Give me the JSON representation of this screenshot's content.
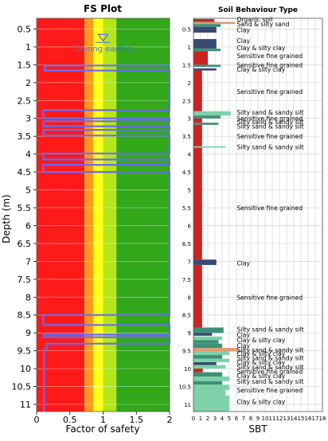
{
  "chart_data": [
    {
      "type": "line",
      "title": "FS Plot",
      "xlabel": "Factor of safety",
      "ylabel": "Depth (m)",
      "xlim": [
        0,
        2
      ],
      "ylim": [
        0.2,
        11.2
      ],
      "x_ticks": [
        "0",
        "0.5",
        "1",
        "1.5",
        "2"
      ],
      "y_ticks": [
        "0.5",
        "1",
        "1.5",
        "2",
        "2.5",
        "3",
        "3.5",
        "4",
        "4.5",
        "5",
        "5.5",
        "6",
        "6.5",
        "7",
        "7.5",
        "8",
        "8.5",
        "9",
        "9.5",
        "10",
        "10.5",
        "11"
      ],
      "grid": true,
      "bands": [
        {
          "from": 0,
          "to": 0.72,
          "color": "#ff1a1a"
        },
        {
          "from": 0.72,
          "to": 0.85,
          "color": "#ff9a1a"
        },
        {
          "from": 0.85,
          "to": 1.0,
          "color": "#ffff1a"
        },
        {
          "from": 1.0,
          "to": 1.2,
          "color": "#b4e61a"
        },
        {
          "from": 1.2,
          "to": 2.0,
          "color": "#32a81a"
        }
      ],
      "annotation": {
        "text": "During earthq.",
        "depth": 0.92,
        "x": 1.0
      },
      "series": [
        {
          "color": "#6a6af0",
          "points": [
            [
              2,
              1.52
            ],
            [
              0.12,
              1.52
            ],
            [
              0.12,
              1.66
            ],
            [
              2,
              1.66
            ],
            [
              2,
              2.77
            ],
            [
              0.1,
              2.77
            ],
            [
              0.1,
              3.0
            ],
            [
              2,
              3.0
            ],
            [
              2,
              3.08
            ],
            [
              0.1,
              3.08
            ],
            [
              0.1,
              3.22
            ],
            [
              2,
              3.22
            ],
            [
              2,
              3.32
            ],
            [
              0.1,
              3.32
            ],
            [
              0.1,
              3.48
            ],
            [
              2,
              3.48
            ],
            [
              2,
              3.98
            ],
            [
              0.1,
              3.98
            ],
            [
              0.1,
              4.15
            ],
            [
              2,
              4.15
            ],
            [
              2,
              4.3
            ],
            [
              0.1,
              4.3
            ],
            [
              0.1,
              4.5
            ],
            [
              2,
              4.5
            ],
            [
              2,
              8.5
            ],
            [
              0.1,
              8.5
            ],
            [
              0.1,
              8.78
            ],
            [
              2,
              8.78
            ],
            [
              2,
              9.05
            ],
            [
              0.1,
              9.05
            ],
            [
              0.1,
              9.12
            ],
            [
              2,
              9.12
            ],
            [
              2,
              9.3
            ],
            [
              0.15,
              9.3
            ],
            [
              0.15,
              9.45
            ],
            [
              0.11,
              9.45
            ],
            [
              0.11,
              11.2
            ]
          ]
        }
      ]
    },
    {
      "type": "bar",
      "title": "Soil Behaviour Type",
      "xlabel": "SBT",
      "xlim": [
        0,
        18
      ],
      "ylim": [
        0.2,
        11.2
      ],
      "x_ticks": [
        "0",
        "1",
        "2",
        "3",
        "4",
        "5",
        "6",
        "7",
        "8",
        "9",
        "10",
        "11",
        "12",
        "13",
        "14",
        "15",
        "16",
        "17",
        "18"
      ],
      "y_ticks": [
        "0.5",
        "1",
        "1.5",
        "2",
        "2.5",
        "3",
        "3.5",
        "4",
        "4.5",
        "5",
        "5.5",
        "6",
        "6.5",
        "7",
        "7.5",
        "8",
        "8.5",
        "9",
        "9.5",
        "10",
        "10.5",
        "11"
      ],
      "grid": true,
      "colors": {
        "1": "#b03030",
        "2": "#cc2222",
        "3": "#3a4a72",
        "4": "#3f8f78",
        "5": "#7ed1a8",
        "6": "#d9a070",
        "7": "#c8a060",
        "8": "#bbbbbb"
      },
      "layers": [
        {
          "top": 0.22,
          "bottom": 0.3,
          "sbt": 2.9,
          "color": "#b03030"
        },
        {
          "top": 0.3,
          "bottom": 0.36,
          "sbt": 5.8,
          "color": "#d9a070"
        },
        {
          "top": 0.36,
          "bottom": 0.44,
          "sbt": 3.8,
          "color": "#3f8f78"
        },
        {
          "top": 0.44,
          "bottom": 0.6,
          "sbt": 3.2,
          "color": "#3a4a72"
        },
        {
          "top": 0.78,
          "bottom": 1.05,
          "sbt": 3.2,
          "color": "#3a4a72"
        },
        {
          "top": 1.05,
          "bottom": 1.12,
          "sbt": 3.8,
          "color": "#3f8f78"
        },
        {
          "top": 1.12,
          "bottom": 1.5,
          "sbt": 2.0,
          "color": "#cc2222"
        },
        {
          "top": 1.5,
          "bottom": 1.56,
          "sbt": 3.8,
          "color": "#3f8f78"
        },
        {
          "top": 1.6,
          "bottom": 1.66,
          "sbt": 3.2,
          "color": "#3a4a72"
        },
        {
          "top": 1.66,
          "bottom": 2.8,
          "sbt": 1.2,
          "color": "#cc2222"
        },
        {
          "top": 2.8,
          "bottom": 2.92,
          "sbt": 5.2,
          "color": "#7ed1a8"
        },
        {
          "top": 2.92,
          "bottom": 3.0,
          "sbt": 3.8,
          "color": "#3f8f78"
        },
        {
          "top": 3.0,
          "bottom": 3.12,
          "sbt": 1.2,
          "color": "#cc2222"
        },
        {
          "top": 3.12,
          "bottom": 3.18,
          "sbt": 3.5,
          "color": "#3f8f78"
        },
        {
          "top": 3.18,
          "bottom": 3.78,
          "sbt": 1.2,
          "color": "#cc2222"
        },
        {
          "top": 3.78,
          "bottom": 3.82,
          "sbt": 4.5,
          "color": "#7ed1a8"
        },
        {
          "top": 3.82,
          "bottom": 6.95,
          "sbt": 1.2,
          "color": "#cc2222"
        },
        {
          "top": 6.95,
          "bottom": 7.1,
          "sbt": 3.2,
          "color": "#3a4a72"
        },
        {
          "top": 7.1,
          "bottom": 8.85,
          "sbt": 1.2,
          "color": "#cc2222"
        },
        {
          "top": 8.85,
          "bottom": 9.0,
          "sbt": 4.2,
          "color": "#3f8f78"
        },
        {
          "top": 9.0,
          "bottom": 9.08,
          "sbt": 2.6,
          "color": "#3a4a72"
        },
        {
          "top": 9.1,
          "bottom": 9.2,
          "sbt": 4.0,
          "color": "#7ed1a8"
        },
        {
          "top": 9.2,
          "bottom": 9.3,
          "sbt": 3.5,
          "color": "#3f8f78"
        },
        {
          "top": 9.3,
          "bottom": 9.42,
          "sbt": 4.0,
          "color": "#3f8f78"
        },
        {
          "top": 9.42,
          "bottom": 9.52,
          "sbt": 6.2,
          "color": "#d9a070"
        },
        {
          "top": 9.52,
          "bottom": 9.62,
          "sbt": 5.0,
          "color": "#7ed1a8"
        },
        {
          "top": 9.62,
          "bottom": 9.72,
          "sbt": 4.0,
          "color": "#3f8f78"
        },
        {
          "top": 9.72,
          "bottom": 9.82,
          "sbt": 5.0,
          "color": "#7ed1a8"
        },
        {
          "top": 9.82,
          "bottom": 9.9,
          "sbt": 3.2,
          "color": "#3a4a72"
        },
        {
          "top": 9.9,
          "bottom": 10.0,
          "sbt": 4.5,
          "color": "#7ed1a8"
        },
        {
          "top": 10.0,
          "bottom": 10.1,
          "sbt": 1.3,
          "color": "#cc2222"
        },
        {
          "top": 10.1,
          "bottom": 10.22,
          "sbt": 4.0,
          "color": "#3f8f78"
        },
        {
          "top": 10.22,
          "bottom": 10.35,
          "sbt": 5.0,
          "color": "#7ed1a8"
        },
        {
          "top": 10.35,
          "bottom": 10.45,
          "sbt": 4.0,
          "color": "#3f8f78"
        },
        {
          "top": 10.45,
          "bottom": 10.6,
          "sbt": 5.0,
          "color": "#7ed1a8"
        },
        {
          "top": 10.6,
          "bottom": 10.75,
          "sbt": 4.5,
          "color": "#7ed1a8"
        },
        {
          "top": 10.75,
          "bottom": 11.2,
          "sbt": 5.0,
          "color": "#7ed1a8"
        }
      ],
      "labels": [
        {
          "text": "Organic soil",
          "depth": 0.22
        },
        {
          "text": "Sand & silty sand",
          "depth": 0.36
        },
        {
          "text": "Clay",
          "depth": 0.52
        },
        {
          "text": "Clay",
          "depth": 0.82
        },
        {
          "text": "Clay & silty clay",
          "depth": 1.02
        },
        {
          "text": "Sensitive fine grained",
          "depth": 1.25
        },
        {
          "text": "Sensitive fine grained",
          "depth": 1.5
        },
        {
          "text": "Clay & silty clay",
          "depth": 1.62
        },
        {
          "text": "Sensitive fine grained",
          "depth": 2.25
        },
        {
          "text": "Silty sand & sandy silt",
          "depth": 2.83
        },
        {
          "text": "Sensitive fine grained",
          "depth": 3.0
        },
        {
          "text": "Silty sand & sandy silt",
          "depth": 3.1
        },
        {
          "text": "Silty sand & sandy silt",
          "depth": 3.22
        },
        {
          "text": "Sensitive fine grained",
          "depth": 3.5
        },
        {
          "text": "Silty sand & sandy silt",
          "depth": 3.8
        },
        {
          "text": "Sensitive fine grained",
          "depth": 5.5
        },
        {
          "text": "Clay",
          "depth": 7.05
        },
        {
          "text": "Sensitive fine grained",
          "depth": 8.0
        },
        {
          "text": "Silty sand & sandy silt",
          "depth": 8.9
        },
        {
          "text": "Clay",
          "depth": 9.05
        },
        {
          "text": "Clay & silty clay",
          "depth": 9.2
        },
        {
          "text": "Clay",
          "depth": 9.35
        },
        {
          "text": "Silty sand & sandy silt",
          "depth": 9.47
        },
        {
          "text": "Clay & silty clay",
          "depth": 9.57
        },
        {
          "text": "Silty sand & sandy silt",
          "depth": 9.7
        },
        {
          "text": "Clay & silty clay",
          "depth": 9.82
        },
        {
          "text": "Silty sand & sandy silt",
          "depth": 9.95
        },
        {
          "text": "Sensitive fine grained",
          "depth": 10.08
        },
        {
          "text": "Clay & silty clay",
          "depth": 10.2
        },
        {
          "text": "Silty sand & sandy silt",
          "depth": 10.35
        },
        {
          "text": "Sensitive fine grained",
          "depth": 10.6
        },
        {
          "text": "Clay & silty clay",
          "depth": 10.92
        }
      ]
    }
  ]
}
